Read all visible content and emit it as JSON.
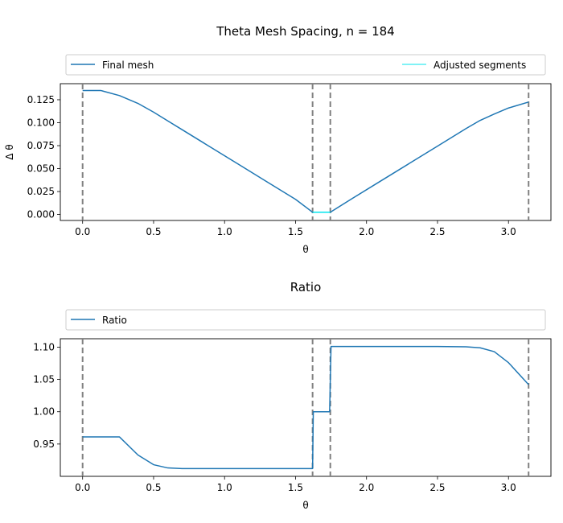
{
  "chart_data": [
    {
      "type": "line",
      "title": "Theta Mesh Spacing, n = 184",
      "xlabel": "θ",
      "ylabel": "Δ θ",
      "xlim": [
        -0.157,
        3.299
      ],
      "ylim": [
        -0.0065,
        0.1425
      ],
      "xticks": [
        0.0,
        0.5,
        1.0,
        1.5,
        2.0,
        2.5,
        3.0
      ],
      "xtick_labels": [
        "0.0",
        "0.5",
        "1.0",
        "1.5",
        "2.0",
        "2.5",
        "3.0"
      ],
      "yticks": [
        0.0,
        0.025,
        0.05,
        0.075,
        0.1,
        0.125
      ],
      "ytick_labels": [
        "0.000",
        "0.025",
        "0.050",
        "0.075",
        "0.100",
        "0.125"
      ],
      "legend_position": "top, above axes",
      "vlines": [
        0.0,
        1.62,
        1.745,
        3.1416
      ],
      "series": [
        {
          "name": "Final mesh",
          "color": "#1f77b4",
          "x": [
            0.0,
            0.13,
            0.26,
            0.39,
            0.5,
            0.6,
            0.7,
            0.9,
            1.1,
            1.3,
            1.5,
            1.62,
            1.745,
            1.9,
            2.1,
            2.3,
            2.5,
            2.7,
            2.8,
            2.9,
            3.0,
            3.1416
          ],
          "y": [
            0.135,
            0.135,
            0.1295,
            0.121,
            0.1115,
            0.102,
            0.0925,
            0.0735,
            0.0545,
            0.0355,
            0.0165,
            0.0025,
            0.0025,
            0.0175,
            0.0365,
            0.0555,
            0.0745,
            0.0935,
            0.1025,
            0.1095,
            0.116,
            0.1225
          ]
        },
        {
          "name": "Adjusted segments",
          "color": "#00e5ee",
          "x": [
            1.62,
            1.745
          ],
          "y": [
            0.0025,
            0.0025
          ]
        }
      ]
    },
    {
      "type": "line",
      "title": "Ratio",
      "xlabel": "θ",
      "ylabel": "",
      "xlim": [
        -0.157,
        3.299
      ],
      "ylim": [
        0.9,
        1.113
      ],
      "xticks": [
        0.0,
        0.5,
        1.0,
        1.5,
        2.0,
        2.5,
        3.0
      ],
      "xtick_labels": [
        "0.0",
        "0.5",
        "1.0",
        "1.5",
        "2.0",
        "2.5",
        "3.0"
      ],
      "yticks": [
        0.95,
        1.0,
        1.05,
        1.1
      ],
      "ytick_labels": [
        "0.95",
        "1.00",
        "1.05",
        "1.10"
      ],
      "legend_position": "top, above axes",
      "vlines": [
        0.0,
        1.62,
        1.745,
        3.1416
      ],
      "series": [
        {
          "name": "Ratio",
          "color": "#1f77b4",
          "x": [
            0.0,
            0.13,
            0.26,
            0.39,
            0.5,
            0.6,
            0.7,
            1.0,
            1.5,
            1.62,
            1.625,
            1.74,
            1.75,
            2.0,
            2.5,
            2.7,
            2.8,
            2.9,
            3.0,
            3.1416
          ],
          "y": [
            0.961,
            0.961,
            0.961,
            0.933,
            0.918,
            0.913,
            0.912,
            0.912,
            0.912,
            0.912,
            1.0,
            1.0,
            1.101,
            1.101,
            1.101,
            1.1005,
            1.099,
            1.093,
            1.076,
            1.042
          ]
        }
      ]
    }
  ]
}
